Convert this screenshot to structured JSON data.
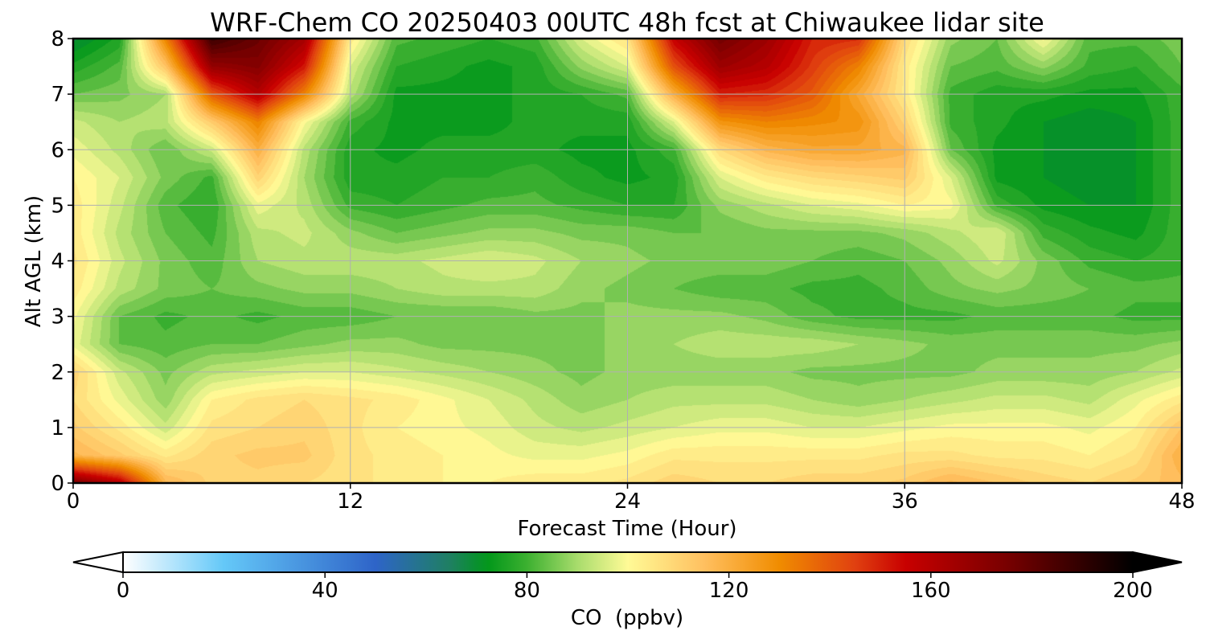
{
  "chart_data": {
    "type": "heatmap",
    "title": "WRF-Chem CO  20250403 00UTC 48h fcst at Chiwaukee lidar site",
    "xlabel": "Forecast Time (Hour)",
    "ylabel": "Alt AGL (km)",
    "xlim": [
      0,
      48
    ],
    "ylim": [
      0,
      8
    ],
    "x_ticks": [
      "0",
      "12",
      "24",
      "36",
      "48"
    ],
    "y_ticks": [
      "0",
      "1",
      "2",
      "3",
      "4",
      "5",
      "6",
      "7",
      "8"
    ],
    "grid": true,
    "colorbar": {
      "label": "CO  (ppbv)",
      "range": [
        0,
        200
      ],
      "ticks": [
        "0",
        "40",
        "80",
        "120",
        "160",
        "200"
      ],
      "extend": "both",
      "colors": [
        {
          "v": 0,
          "c": "#ffffff"
        },
        {
          "v": 20,
          "c": "#64c8f8"
        },
        {
          "v": 50,
          "c": "#2e64c8"
        },
        {
          "v": 65,
          "c": "#1e8060"
        },
        {
          "v": 72,
          "c": "#00961a"
        },
        {
          "v": 80,
          "c": "#3cb030"
        },
        {
          "v": 90,
          "c": "#a8dc6c"
        },
        {
          "v": 100,
          "c": "#fffa96"
        },
        {
          "v": 115,
          "c": "#ffc060"
        },
        {
          "v": 130,
          "c": "#f08c00"
        },
        {
          "v": 145,
          "c": "#e04010"
        },
        {
          "v": 155,
          "c": "#c80000"
        },
        {
          "v": 175,
          "c": "#780000"
        },
        {
          "v": 200,
          "c": "#000000"
        }
      ]
    },
    "hours": [
      0,
      2,
      4,
      6,
      8,
      10,
      12,
      14,
      16,
      18,
      20,
      22,
      24,
      26,
      28,
      30,
      32,
      34,
      36,
      38,
      40,
      42,
      44,
      46,
      48
    ],
    "altitudes_km": [
      0,
      0.5,
      1,
      1.5,
      2,
      2.5,
      3,
      3.5,
      4,
      4.5,
      5,
      5.5,
      6,
      6.5,
      7,
      7.5,
      8
    ],
    "co_ppbv": [
      [
        175,
        160,
        118,
        110,
        110,
        108,
        106,
        104,
        102,
        102,
        104,
        104,
        106,
        110,
        108,
        108,
        110,
        110,
        112,
        118,
        114,
        110,
        108,
        112,
        116
      ],
      [
        118,
        112,
        104,
        110,
        112,
        112,
        106,
        104,
        102,
        100,
        98,
        98,
        100,
        104,
        104,
        104,
        104,
        104,
        106,
        106,
        104,
        104,
        102,
        106,
        120
      ],
      [
        112,
        104,
        94,
        106,
        108,
        110,
        106,
        102,
        100,
        98,
        94,
        92,
        94,
        96,
        98,
        98,
        96,
        96,
        98,
        100,
        100,
        100,
        98,
        102,
        114
      ],
      [
        108,
        98,
        88,
        102,
        106,
        108,
        106,
        104,
        100,
        96,
        92,
        88,
        90,
        92,
        92,
        92,
        90,
        88,
        90,
        92,
        94,
        94,
        92,
        98,
        104
      ],
      [
        110,
        94,
        86,
        92,
        94,
        96,
        96,
        94,
        92,
        90,
        88,
        86,
        88,
        88,
        88,
        88,
        86,
        86,
        86,
        86,
        88,
        88,
        88,
        90,
        94
      ],
      [
        98,
        84,
        82,
        84,
        84,
        86,
        88,
        88,
        86,
        86,
        86,
        86,
        88,
        90,
        92,
        92,
        92,
        90,
        88,
        86,
        86,
        86,
        86,
        86,
        88
      ],
      [
        100,
        84,
        80,
        82,
        80,
        82,
        82,
        84,
        84,
        84,
        86,
        86,
        88,
        88,
        88,
        86,
        82,
        80,
        80,
        80,
        82,
        82,
        82,
        80,
        80
      ],
      [
        104,
        92,
        86,
        84,
        86,
        88,
        88,
        90,
        92,
        92,
        92,
        88,
        86,
        84,
        82,
        82,
        80,
        80,
        82,
        86,
        88,
        86,
        84,
        82,
        82
      ],
      [
        106,
        94,
        86,
        82,
        90,
        92,
        92,
        92,
        94,
        96,
        94,
        90,
        88,
        86,
        86,
        86,
        84,
        82,
        84,
        88,
        94,
        86,
        80,
        78,
        80
      ],
      [
        104,
        92,
        84,
        80,
        92,
        94,
        88,
        84,
        86,
        88,
        88,
        86,
        86,
        84,
        84,
        86,
        86,
        86,
        88,
        92,
        96,
        80,
        76,
        74,
        80
      ],
      [
        104,
        94,
        82,
        78,
        98,
        92,
        80,
        78,
        80,
        82,
        82,
        80,
        78,
        78,
        88,
        92,
        96,
        98,
        102,
        100,
        80,
        74,
        72,
        72,
        80
      ],
      [
        102,
        96,
        86,
        80,
        110,
        90,
        76,
        76,
        78,
        78,
        80,
        76,
        74,
        76,
        96,
        104,
        108,
        110,
        112,
        96,
        74,
        72,
        70,
        72,
        80
      ],
      [
        98,
        92,
        84,
        94,
        120,
        92,
        76,
        74,
        76,
        76,
        76,
        74,
        74,
        80,
        108,
        118,
        122,
        122,
        118,
        84,
        74,
        72,
        70,
        72,
        80
      ],
      [
        94,
        90,
        92,
        112,
        132,
        100,
        80,
        74,
        74,
        74,
        76,
        76,
        76,
        96,
        128,
        132,
        130,
        128,
        110,
        80,
        76,
        72,
        70,
        72,
        80
      ],
      [
        84,
        86,
        90,
        140,
        160,
        132,
        92,
        74,
        74,
        74,
        76,
        78,
        82,
        120,
        150,
        148,
        140,
        122,
        104,
        80,
        76,
        76,
        74,
        74,
        80
      ],
      [
        76,
        82,
        114,
        168,
        172,
        152,
        96,
        78,
        76,
        74,
        76,
        88,
        96,
        142,
        166,
        160,
        146,
        132,
        104,
        84,
        82,
        88,
        80,
        78,
        84
      ],
      [
        68,
        76,
        132,
        188,
        178,
        164,
        104,
        82,
        80,
        78,
        80,
        96,
        106,
        156,
        176,
        166,
        150,
        148,
        108,
        88,
        84,
        100,
        82,
        82,
        86
      ]
    ]
  }
}
